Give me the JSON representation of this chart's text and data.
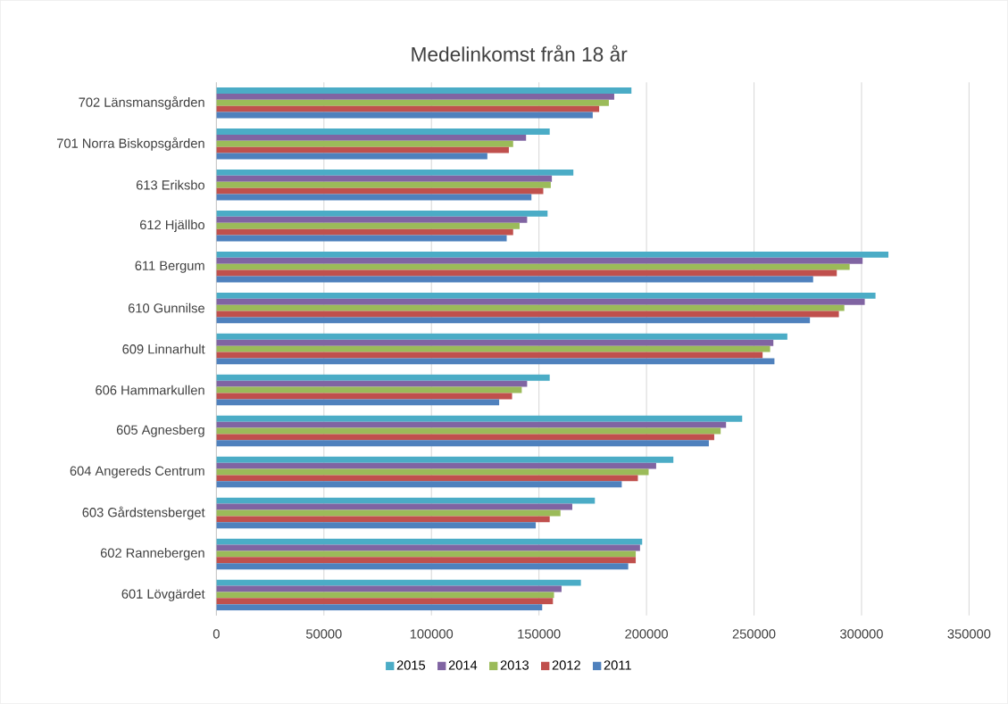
{
  "chart_data": {
    "type": "bar",
    "orientation": "horizontal",
    "title": "Medelinkomst  från 18 år",
    "categories": [
      "702 Länsmansgården",
      "701 Norra Biskopsgården",
      "613 Eriksbo",
      "612 Hjällbo",
      "611 Bergum",
      "610 Gunnilse",
      "609 Linnarhult",
      "606 Hammarkullen",
      "605 Agnesberg",
      "604 Angereds Centrum",
      "603 Gårdstensberget",
      "602 Rannebergen",
      "601 Lövgärdet"
    ],
    "series": [
      {
        "name": "2015",
        "color": "#4bacc6",
        "values": [
          193000,
          155000,
          166000,
          154000,
          312500,
          306500,
          265500,
          155000,
          244500,
          212500,
          176000,
          198000,
          169500
        ]
      },
      {
        "name": "2014",
        "color": "#8064a2",
        "values": [
          185000,
          144000,
          156000,
          144500,
          300500,
          301500,
          259000,
          144500,
          237000,
          204500,
          165500,
          197000,
          160500
        ]
      },
      {
        "name": "2013",
        "color": "#9bbb59",
        "values": [
          182500,
          138000,
          155500,
          141000,
          294500,
          292000,
          257500,
          142000,
          234500,
          201000,
          160000,
          195000,
          157000
        ]
      },
      {
        "name": "2012",
        "color": "#c0504d",
        "values": [
          178000,
          136000,
          152000,
          138000,
          288500,
          289500,
          254000,
          137500,
          231500,
          196000,
          155000,
          195000,
          156500
        ]
      },
      {
        "name": "2011",
        "color": "#4f81bd",
        "values": [
          175000,
          126000,
          146500,
          135000,
          277500,
          276000,
          259500,
          131500,
          229000,
          188500,
          148500,
          191500,
          151500
        ]
      }
    ],
    "xlim": [
      0,
      350000
    ],
    "xticks": [
      0,
      50000,
      100000,
      150000,
      200000,
      250000,
      300000,
      350000
    ],
    "grid": "x",
    "legend": "bottom"
  }
}
